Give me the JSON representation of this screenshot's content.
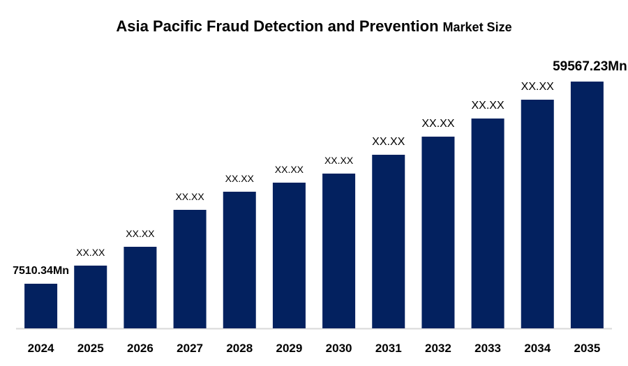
{
  "chart_data": {
    "type": "bar",
    "title": "Asia Pacific Fraud Detection and Prevention",
    "subtitle": "Market Size",
    "xlabel": "",
    "ylabel": "",
    "categories": [
      "2024",
      "2025",
      "2026",
      "2027",
      "2028",
      "2029",
      "2030",
      "2031",
      "2032",
      "2033",
      "2034",
      "2035"
    ],
    "values": [
      7510.34,
      12178,
      17024,
      26538,
      31205,
      33539,
      35873,
      40720,
      45387,
      50054,
      54901,
      59567.23
    ],
    "data_labels": [
      "7510.34Mn",
      "XX.XX",
      "XX.XX",
      "XX.XX",
      "XX.XX",
      "XX.XX",
      "XX.XX",
      "XX.XX",
      "XX.XX",
      "XX.XX",
      "XX.XX",
      "59567.23Mn"
    ],
    "ylim": [
      -3980,
      59570
    ],
    "grid": false,
    "legend": "none",
    "bar_color": "#03215F",
    "axis_color": "#D9D9D9"
  }
}
